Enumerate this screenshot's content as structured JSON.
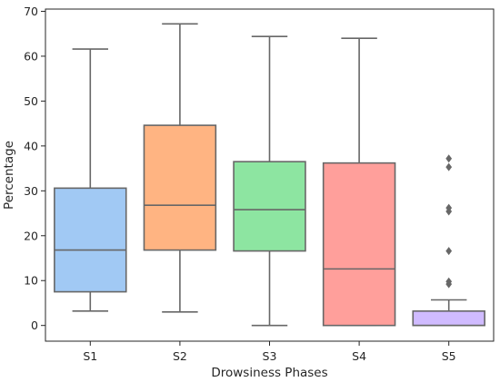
{
  "chart_data": {
    "type": "box",
    "xlabel": "Drowsiness Phases",
    "ylabel": "Percentage",
    "ylim": [
      -3.5,
      70.5
    ],
    "yticks": [
      0,
      10,
      20,
      30,
      40,
      50,
      60,
      70
    ],
    "grid": false,
    "legend": "none",
    "median_color": "#676767",
    "boxes": [
      {
        "category": "S1",
        "color": "#a1c9f4",
        "whisker_low": 3.2,
        "q1": 7.5,
        "median": 16.8,
        "q3": 30.6,
        "whisker_high": 61.6,
        "outliers": []
      },
      {
        "category": "S2",
        "color": "#ffb482",
        "whisker_low": 3.0,
        "q1": 16.8,
        "median": 26.8,
        "q3": 44.6,
        "whisker_high": 67.2,
        "outliers": []
      },
      {
        "category": "S3",
        "color": "#8de5a1",
        "whisker_low": 0.0,
        "q1": 16.6,
        "median": 25.8,
        "q3": 36.5,
        "whisker_high": 64.4,
        "outliers": []
      },
      {
        "category": "S4",
        "color": "#ff9f9b",
        "whisker_low": 0.0,
        "q1": 0.0,
        "median": 12.6,
        "q3": 36.2,
        "whisker_high": 64.0,
        "outliers": []
      },
      {
        "category": "S5",
        "color": "#d0bbff",
        "whisker_low": 0.0,
        "q1": 0.0,
        "median": 0.0,
        "q3": 3.2,
        "whisker_high": 5.7,
        "outliers": [
          9.2,
          9.8,
          16.6,
          25.4,
          26.2,
          35.3,
          37.2
        ]
      }
    ]
  }
}
